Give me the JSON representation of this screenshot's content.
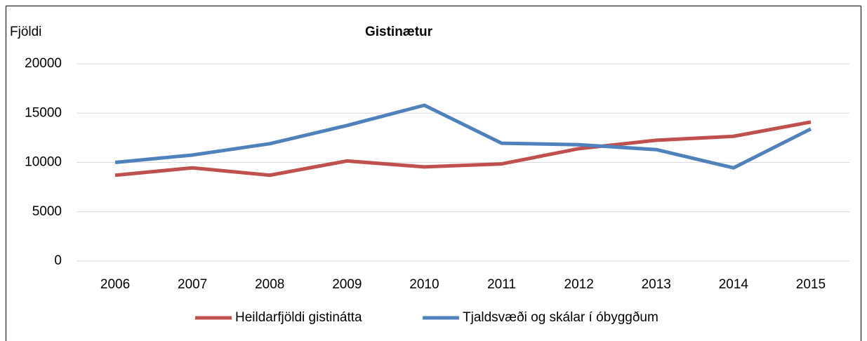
{
  "chart_data": {
    "type": "line",
    "title": "Gistinætur",
    "y_label": "Fjöldi",
    "categories": [
      "2006",
      "2007",
      "2008",
      "2009",
      "2010",
      "2011",
      "2012",
      "2013",
      "2014",
      "2015"
    ],
    "series": [
      {
        "name": "Heildarfjöldi gistinátta",
        "color": "#c0504d",
        "values": [
          8700,
          9450,
          8700,
          10150,
          9550,
          9850,
          11400,
          12250,
          12650,
          14100
        ]
      },
      {
        "name": "Tjaldsvæði og skálar í óbyggðum",
        "color": "#4f81bd",
        "values": [
          10000,
          10750,
          11900,
          13750,
          15800,
          11950,
          11800,
          11300,
          9450,
          13400
        ]
      }
    ],
    "ylim": [
      0,
      20000
    ],
    "yticks": [
      0,
      5000,
      10000,
      15000,
      20000
    ],
    "grid": true,
    "legend": "bottom"
  }
}
